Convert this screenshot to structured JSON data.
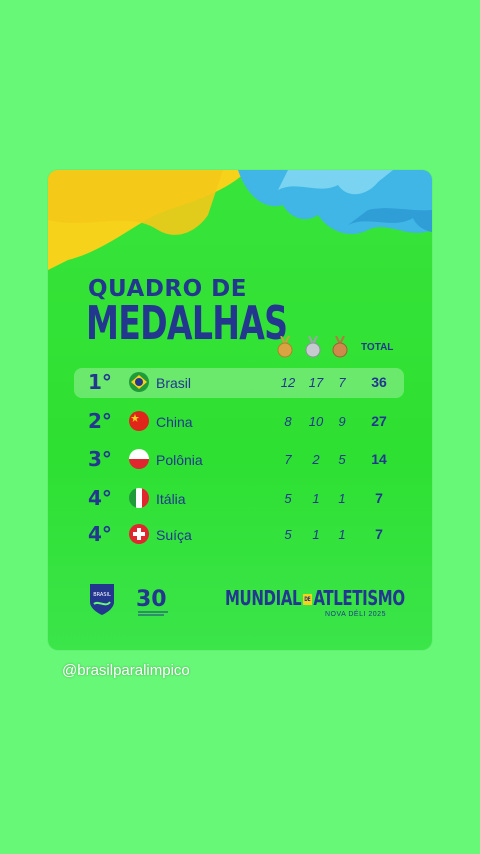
{
  "card": {
    "title_line1": "QUADRO DE",
    "title_line2": "MEDALHAS",
    "total_header": "TOTAL",
    "medal_icons": [
      "gold-medal-icon",
      "silver-medal-icon",
      "bronze-medal-icon"
    ],
    "rows": [
      {
        "position": "1°",
        "country": "Brasil",
        "flag": "brazil-flag-icon",
        "gold": "12",
        "silver": "17",
        "bronze": "7",
        "total": "36"
      },
      {
        "position": "2°",
        "country": "China",
        "flag": "china-flag-icon",
        "gold": "8",
        "silver": "10",
        "bronze": "9",
        "total": "27"
      },
      {
        "position": "3°",
        "country": "Polônia",
        "flag": "poland-flag-icon",
        "gold": "7",
        "silver": "2",
        "bronze": "5",
        "total": "14"
      },
      {
        "position": "4°",
        "country": "Itália",
        "flag": "italy-flag-icon",
        "gold": "5",
        "silver": "1",
        "bronze": "1",
        "total": "7"
      },
      {
        "position": "4°",
        "country": "Suíça",
        "flag": "switzerland-flag-icon",
        "gold": "5",
        "silver": "1",
        "bronze": "1",
        "total": "7"
      }
    ],
    "footer": {
      "logo1": "BRASIL",
      "logo2": "30",
      "event_part1": "MUNDIAL",
      "event_de": "DE",
      "event_part2": "ATLETISMO",
      "event_sub": "NOVA DÉLI 2025"
    }
  },
  "handle": "@brasilparalimpico",
  "colors": {
    "background": "#67f877",
    "card_green": "#38e43a",
    "navy": "#23378f",
    "yellow": "#f7d21a",
    "blue": "#3fb6e6"
  }
}
